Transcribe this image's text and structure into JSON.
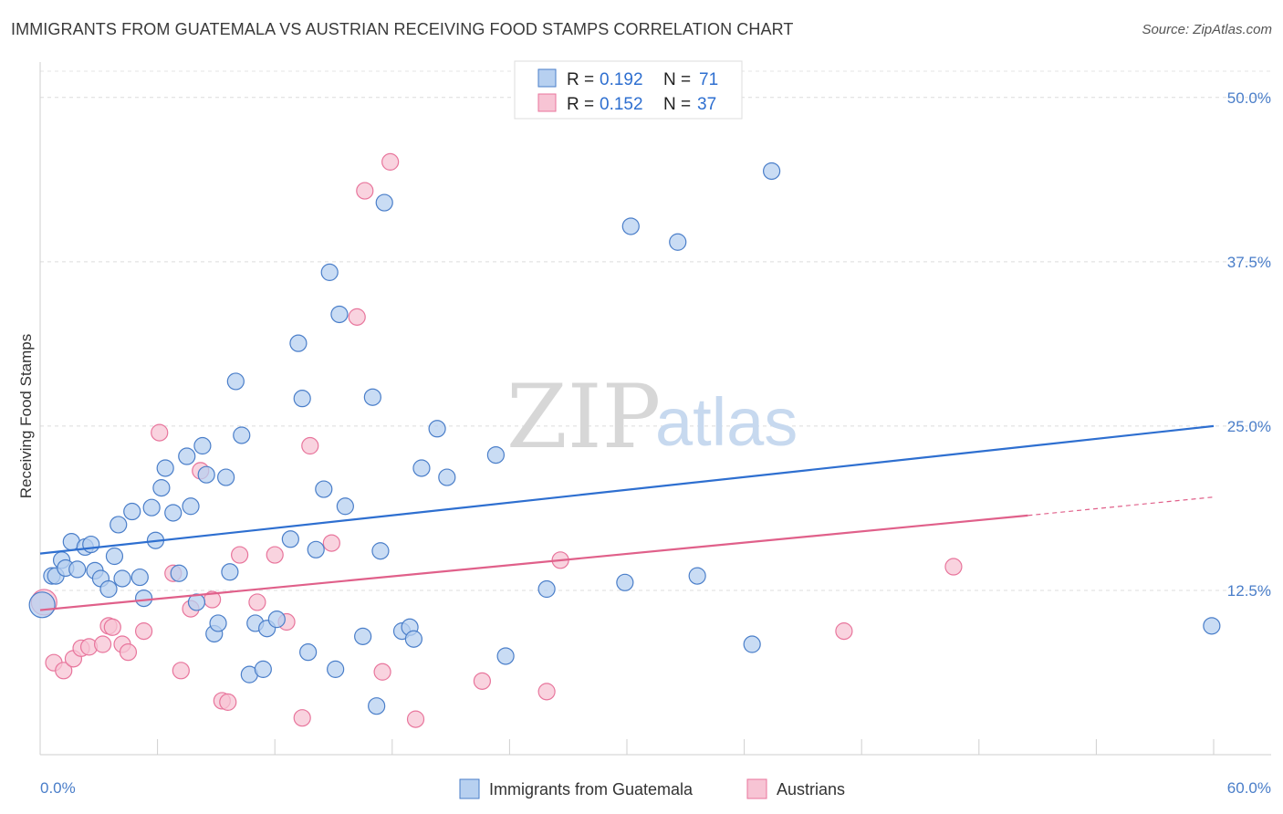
{
  "title": "IMMIGRANTS FROM GUATEMALA VS AUSTRIAN RECEIVING FOOD STAMPS CORRELATION CHART",
  "source": "Source: ZipAtlas.com",
  "watermark": {
    "zip": "ZIP",
    "atlas": "atlas"
  },
  "colors": {
    "blue": "#4a7ec9",
    "blue_fill": "#b7d0f0",
    "blue_line": "#2e6fd0",
    "pink": "#e8759c",
    "pink_fill": "#f7c4d4",
    "pink_line": "#e0608a"
  },
  "stats": [
    {
      "r_label": "R = ",
      "r_value": "0.192",
      "n_label": "N = ",
      "n_value": "71"
    },
    {
      "r_label": "R = ",
      "r_value": "0.152",
      "n_label": "N = ",
      "n_value": "37"
    }
  ],
  "chart_data": {
    "type": "scatter",
    "title": "IMMIGRANTS FROM GUATEMALA VS AUSTRIAN RECEIVING FOOD STAMPS CORRELATION CHART",
    "xlabel": "",
    "ylabel": "Receiving Food Stamps",
    "xlim": [
      0,
      60
    ],
    "ylim": [
      0,
      52
    ],
    "x_tick_labels": [
      "0.0%",
      "60.0%"
    ],
    "y_ticks": [
      12.5,
      25.0,
      37.5,
      50.0
    ],
    "y_tick_labels": [
      "12.5%",
      "25.0%",
      "37.5%",
      "50.0%"
    ],
    "series": [
      {
        "name": "Immigrants from Guatemala",
        "color": "#4a7ec9",
        "trend": {
          "x0": 0,
          "y0": 15.3,
          "x1": 60,
          "y1": 25.0
        },
        "points": [
          [
            0.1,
            11.4
          ],
          [
            0.6,
            13.6
          ],
          [
            0.8,
            13.6
          ],
          [
            1.1,
            14.8
          ],
          [
            1.3,
            14.2
          ],
          [
            1.6,
            16.2
          ],
          [
            1.9,
            14.1
          ],
          [
            2.3,
            15.8
          ],
          [
            2.6,
            16.0
          ],
          [
            2.8,
            14.0
          ],
          [
            3.1,
            13.4
          ],
          [
            3.5,
            12.6
          ],
          [
            3.8,
            15.1
          ],
          [
            4.0,
            17.5
          ],
          [
            4.2,
            13.4
          ],
          [
            4.7,
            18.5
          ],
          [
            5.1,
            13.5
          ],
          [
            5.3,
            11.9
          ],
          [
            5.7,
            18.8
          ],
          [
            5.9,
            16.3
          ],
          [
            6.2,
            20.3
          ],
          [
            6.4,
            21.8
          ],
          [
            6.8,
            18.4
          ],
          [
            7.1,
            13.8
          ],
          [
            7.5,
            22.7
          ],
          [
            7.7,
            18.9
          ],
          [
            8.0,
            11.6
          ],
          [
            8.3,
            23.5
          ],
          [
            8.5,
            21.3
          ],
          [
            8.9,
            9.2
          ],
          [
            9.1,
            10.0
          ],
          [
            9.5,
            21.1
          ],
          [
            9.7,
            13.9
          ],
          [
            10.0,
            28.4
          ],
          [
            10.3,
            24.3
          ],
          [
            10.7,
            6.1
          ],
          [
            11.0,
            10.0
          ],
          [
            11.4,
            6.5
          ],
          [
            11.6,
            9.6
          ],
          [
            12.1,
            10.3
          ],
          [
            12.8,
            16.4
          ],
          [
            13.2,
            31.3
          ],
          [
            13.4,
            27.1
          ],
          [
            13.7,
            7.8
          ],
          [
            14.1,
            15.6
          ],
          [
            14.5,
            20.2
          ],
          [
            14.8,
            36.7
          ],
          [
            15.1,
            6.5
          ],
          [
            15.3,
            33.5
          ],
          [
            15.6,
            18.9
          ],
          [
            17.0,
            27.2
          ],
          [
            16.5,
            9.0
          ],
          [
            17.2,
            3.7
          ],
          [
            17.4,
            15.5
          ],
          [
            17.6,
            42.0
          ],
          [
            18.5,
            9.4
          ],
          [
            18.9,
            9.7
          ],
          [
            19.1,
            8.8
          ],
          [
            19.5,
            21.8
          ],
          [
            20.3,
            24.8
          ],
          [
            20.8,
            21.1
          ],
          [
            23.3,
            22.8
          ],
          [
            23.8,
            7.5
          ],
          [
            25.9,
            12.6
          ],
          [
            29.9,
            13.1
          ],
          [
            30.2,
            40.2
          ],
          [
            32.6,
            39.0
          ],
          [
            33.6,
            13.6
          ],
          [
            36.4,
            8.4
          ],
          [
            37.4,
            44.4
          ],
          [
            59.9,
            9.8
          ]
        ]
      },
      {
        "name": "Austrians",
        "color": "#e8759c",
        "trend": {
          "x0": 0,
          "y0": 11.0,
          "x1": 50.5,
          "y1": 18.2,
          "x1_dash": 60,
          "y1_dash": 19.6
        },
        "points": [
          [
            0.2,
            11.6
          ],
          [
            0.7,
            7.0
          ],
          [
            1.2,
            6.4
          ],
          [
            1.7,
            7.3
          ],
          [
            2.1,
            8.1
          ],
          [
            2.5,
            8.2
          ],
          [
            3.2,
            8.4
          ],
          [
            3.5,
            9.8
          ],
          [
            3.7,
            9.7
          ],
          [
            4.2,
            8.4
          ],
          [
            4.5,
            7.8
          ],
          [
            5.3,
            9.4
          ],
          [
            6.1,
            24.5
          ],
          [
            6.8,
            13.8
          ],
          [
            7.2,
            6.4
          ],
          [
            7.7,
            11.1
          ],
          [
            8.2,
            21.6
          ],
          [
            8.8,
            11.8
          ],
          [
            9.3,
            4.1
          ],
          [
            9.6,
            4.0
          ],
          [
            10.2,
            15.2
          ],
          [
            11.1,
            11.6
          ],
          [
            12.0,
            15.2
          ],
          [
            12.6,
            10.1
          ],
          [
            13.4,
            2.8
          ],
          [
            13.8,
            23.5
          ],
          [
            14.9,
            16.1
          ],
          [
            16.2,
            33.3
          ],
          [
            16.6,
            42.9
          ],
          [
            17.5,
            6.3
          ],
          [
            17.9,
            45.1
          ],
          [
            19.2,
            2.7
          ],
          [
            22.6,
            5.6
          ],
          [
            25.9,
            4.8
          ],
          [
            26.6,
            14.8
          ],
          [
            41.1,
            9.4
          ],
          [
            46.7,
            14.3
          ]
        ]
      }
    ],
    "legend": [
      "Immigrants from Guatemala",
      "Austrians"
    ]
  }
}
